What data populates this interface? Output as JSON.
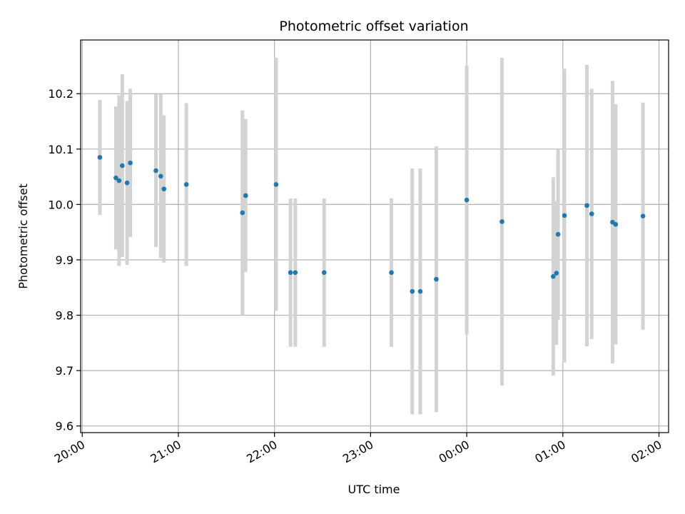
{
  "chart_data": {
    "type": "scatter",
    "title": "Photometric offset variation",
    "xlabel": "UTC time",
    "ylabel": "Photometric offset",
    "x_is_time": true,
    "x_ticks": [
      "20:00",
      "21:00",
      "22:00",
      "23:00",
      "00:00",
      "01:00",
      "02:00"
    ],
    "y_ticks": [
      "9.6",
      "9.7",
      "9.8",
      "9.9",
      "10.0",
      "10.1",
      "10.2"
    ],
    "xlim": [
      "19:59",
      "02:06"
    ],
    "ylim": [
      9.588,
      10.297
    ],
    "grid": true,
    "point_color": "#1f77b4",
    "errorbar_color": "#d3d3d3",
    "series": [
      {
        "points": [
          {
            "t": "20:11",
            "y": 10.085,
            "lo": 9.981,
            "hi": 10.189
          },
          {
            "t": "20:21",
            "y": 10.048,
            "lo": 9.919,
            "hi": 10.177
          },
          {
            "t": "20:23",
            "y": 10.043,
            "lo": 9.889,
            "hi": 10.197
          },
          {
            "t": "20:25",
            "y": 10.07,
            "lo": 9.905,
            "hi": 10.235
          },
          {
            "t": "20:28",
            "y": 10.039,
            "lo": 9.891,
            "hi": 10.187
          },
          {
            "t": "20:30",
            "y": 10.075,
            "lo": 9.941,
            "hi": 10.209
          },
          {
            "t": "20:46",
            "y": 10.061,
            "lo": 9.923,
            "hi": 10.199
          },
          {
            "t": "20:49",
            "y": 10.051,
            "lo": 9.903,
            "hi": 10.199
          },
          {
            "t": "20:51",
            "y": 10.028,
            "lo": 9.895,
            "hi": 10.161
          },
          {
            "t": "21:05",
            "y": 10.036,
            "lo": 9.889,
            "hi": 10.183
          },
          {
            "t": "21:40",
            "y": 9.985,
            "lo": 9.8,
            "hi": 10.17
          },
          {
            "t": "21:42",
            "y": 10.016,
            "lo": 9.878,
            "hi": 10.154
          },
          {
            "t": "22:01",
            "y": 10.036,
            "lo": 9.808,
            "hi": 10.265
          },
          {
            "t": "22:10",
            "y": 9.877,
            "lo": 9.743,
            "hi": 10.011
          },
          {
            "t": "22:13",
            "y": 9.877,
            "lo": 9.743,
            "hi": 10.011
          },
          {
            "t": "22:31",
            "y": 9.877,
            "lo": 9.743,
            "hi": 10.011
          },
          {
            "t": "23:13",
            "y": 9.877,
            "lo": 9.743,
            "hi": 10.011
          },
          {
            "t": "23:26",
            "y": 9.843,
            "lo": 9.621,
            "hi": 10.065
          },
          {
            "t": "23:31",
            "y": 9.843,
            "lo": 9.621,
            "hi": 10.065
          },
          {
            "t": "23:41",
            "y": 9.865,
            "lo": 9.625,
            "hi": 10.105
          },
          {
            "t": "00:00",
            "y": 10.008,
            "lo": 9.765,
            "hi": 10.251
          },
          {
            "t": "00:22",
            "y": 9.969,
            "lo": 9.673,
            "hi": 10.265
          },
          {
            "t": "00:54",
            "y": 9.87,
            "lo": 9.691,
            "hi": 10.049
          },
          {
            "t": "00:56",
            "y": 9.876,
            "lo": 9.746,
            "hi": 10.006
          },
          {
            "t": "00:57",
            "y": 9.946,
            "lo": 9.792,
            "hi": 10.1
          },
          {
            "t": "01:01",
            "y": 9.98,
            "lo": 9.715,
            "hi": 10.245
          },
          {
            "t": "01:15",
            "y": 9.998,
            "lo": 9.744,
            "hi": 10.252
          },
          {
            "t": "01:18",
            "y": 9.983,
            "lo": 9.757,
            "hi": 10.209
          },
          {
            "t": "01:31",
            "y": 9.968,
            "lo": 9.713,
            "hi": 10.223
          },
          {
            "t": "01:33",
            "y": 9.964,
            "lo": 9.747,
            "hi": 10.181
          },
          {
            "t": "01:50",
            "y": 9.979,
            "lo": 9.774,
            "hi": 10.184
          }
        ]
      }
    ]
  }
}
